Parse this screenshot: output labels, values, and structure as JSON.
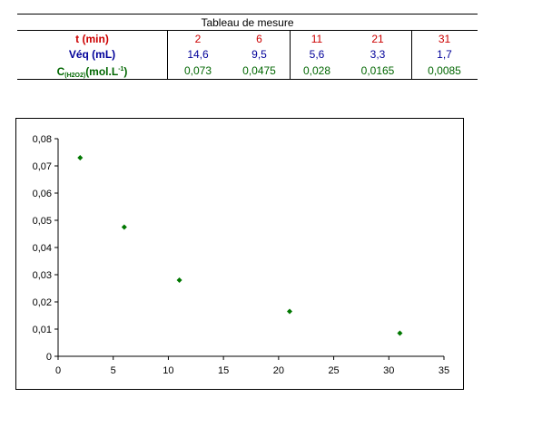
{
  "table": {
    "title": "Tableau de mesure",
    "rows": [
      {
        "label": "t (min)",
        "values": [
          "2",
          "6",
          "11",
          "21",
          "31"
        ]
      },
      {
        "label": "Véq (mL)",
        "values": [
          "14,6",
          "9,5",
          "5,6",
          "3,3",
          "1,7"
        ]
      },
      {
        "label_main": "C",
        "label_sub": "(H2O2)",
        "label_unit": "(mol.L",
        "label_sup": "-1",
        "label_end": ")",
        "values": [
          "0,073",
          "0,0475",
          "0,028",
          "0,0165",
          "0,0085"
        ]
      }
    ]
  },
  "colors": {
    "time": "#cc0000",
    "volume": "#000099",
    "concentration": "#006600",
    "marker": "#007700"
  },
  "chart_data": {
    "type": "scatter",
    "title": "",
    "xlabel": "",
    "ylabel": "",
    "xlim": [
      0,
      35
    ],
    "ylim": [
      0,
      0.08
    ],
    "x_ticks": [
      "0",
      "5",
      "10",
      "15",
      "20",
      "25",
      "30",
      "35"
    ],
    "y_ticks": [
      "0",
      "0,01",
      "0,02",
      "0,03",
      "0,04",
      "0,05",
      "0,06",
      "0,07",
      "0,08"
    ],
    "grid": false,
    "series": [
      {
        "x": [
          2,
          6,
          11,
          21,
          31
        ],
        "y": [
          0.073,
          0.0475,
          0.028,
          0.0165,
          0.0085
        ]
      }
    ]
  }
}
